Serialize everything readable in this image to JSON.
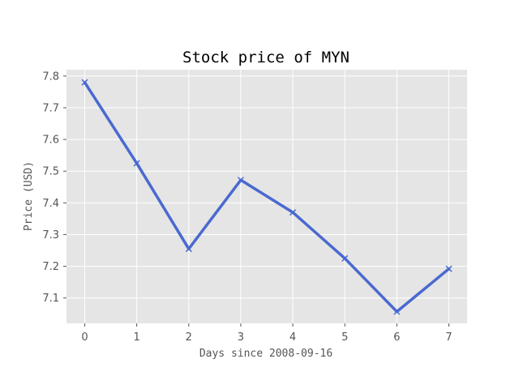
{
  "chart_data": {
    "type": "line",
    "title": "Stock price of MYN",
    "xlabel": "Days since 2008-09-16",
    "ylabel": "Price (USD)",
    "x": [
      0,
      1,
      2,
      3,
      4,
      5,
      6,
      7
    ],
    "xlim": [
      -0.35,
      7.35
    ],
    "ylim": [
      7.02,
      7.82
    ],
    "xticks": [
      0,
      1,
      2,
      3,
      4,
      5,
      6,
      7
    ],
    "yticks": [
      7.1,
      7.2,
      7.3,
      7.4,
      7.5,
      7.6,
      7.7,
      7.8
    ],
    "grid": true,
    "series": [
      {
        "values": [
          7.78,
          7.525,
          7.255,
          7.472,
          7.37,
          7.225,
          7.057,
          7.192
        ],
        "color": "#4a69d0",
        "marker": "x"
      }
    ],
    "style": {
      "plot_background": "#e5e5e5",
      "grid_color": "#ffffff"
    }
  }
}
